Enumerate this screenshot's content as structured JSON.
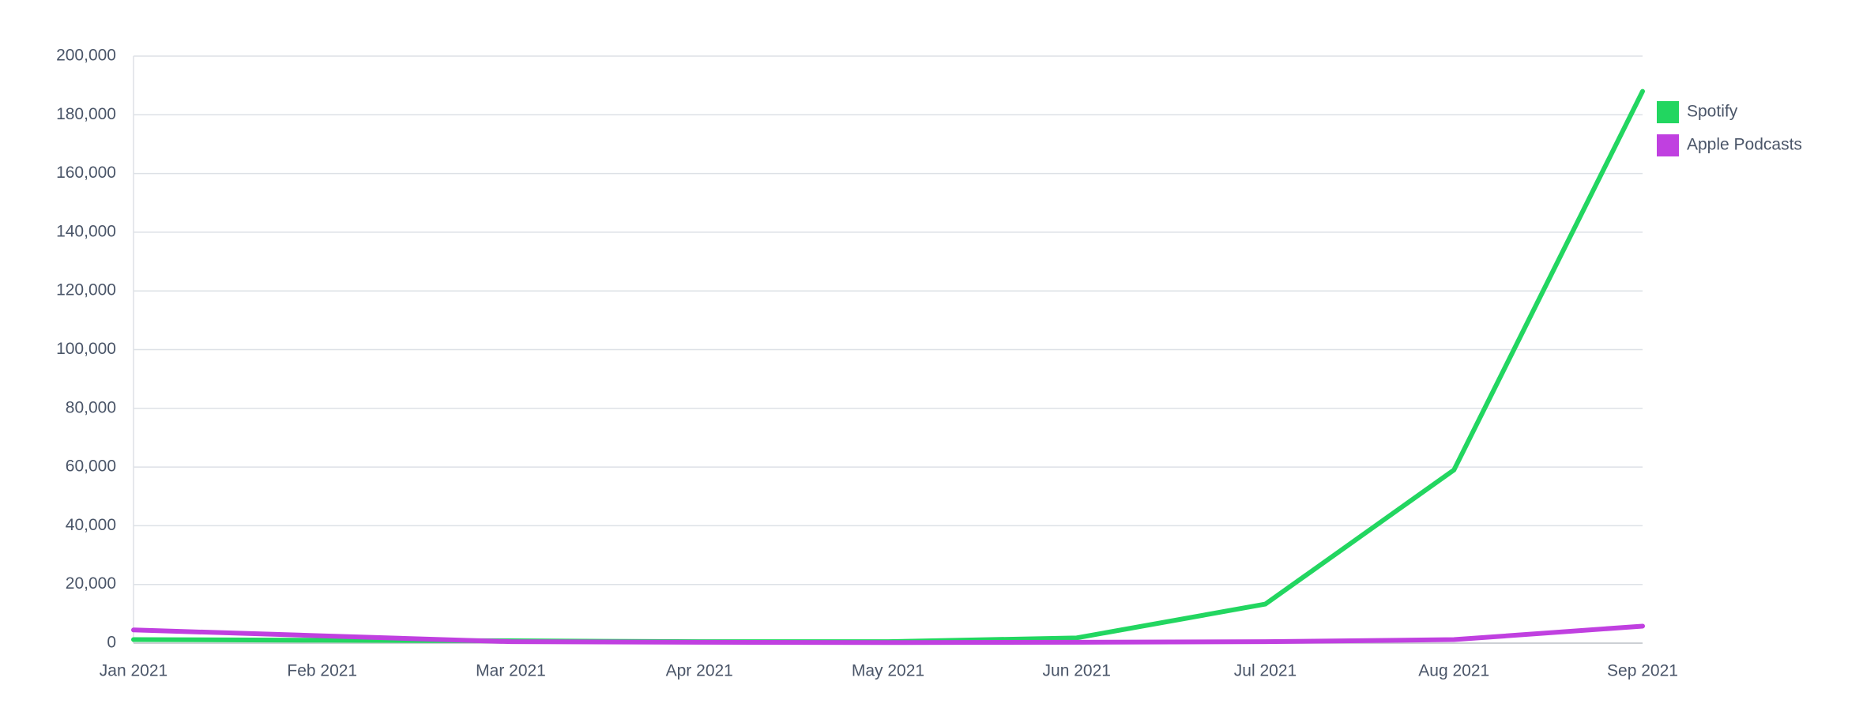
{
  "chart_data": {
    "type": "line",
    "x": [
      "Jan 2021",
      "Feb 2021",
      "Mar 2021",
      "Apr 2021",
      "May 2021",
      "Jun 2021",
      "Jul 2021",
      "Aug 2021",
      "Sep 2021"
    ],
    "series": [
      {
        "name": "Spotify",
        "color": "#22d660",
        "values": [
          1200,
          1000,
          800,
          500,
          500,
          1800,
          13300,
          59000,
          188000
        ]
      },
      {
        "name": "Apple Podcasts",
        "color": "#c040e0",
        "values": [
          4500,
          2500,
          500,
          300,
          200,
          300,
          500,
          1200,
          5800
        ]
      }
    ],
    "ylim": [
      0,
      200000
    ],
    "yticks": [
      0,
      {
        "value": 20000,
        "label": "20,000"
      },
      {
        "value": 40000,
        "label": "40,000"
      },
      {
        "value": 60000,
        "label": "60,000"
      },
      {
        "value": 80000,
        "label": "80,000"
      },
      {
        "value": 100000,
        "label": "100,000"
      },
      {
        "value": 120000,
        "label": "120,000"
      },
      {
        "value": 140000,
        "label": "140,000"
      },
      {
        "value": 160000,
        "label": "160,000"
      },
      {
        "value": 180000,
        "label": "180,000"
      },
      {
        "value": 200000,
        "label": "200,000"
      }
    ],
    "grid": true,
    "legend": "right"
  }
}
